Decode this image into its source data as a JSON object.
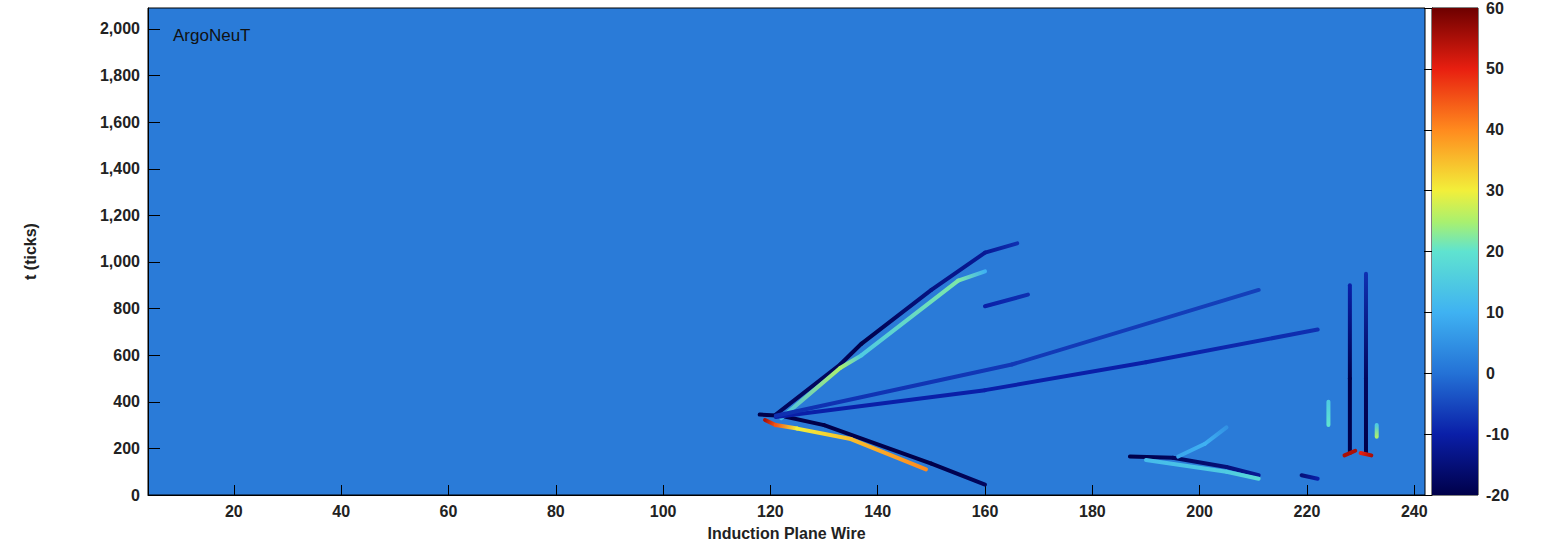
{
  "chart_data": {
    "type": "heatmap",
    "annotation": "ArgoNeuT",
    "x_label": "Induction Plane Wire",
    "y_label": "t (ticks)",
    "xlim": [
      4,
      242
    ],
    "xticks": [
      20,
      40,
      60,
      80,
      100,
      120,
      140,
      160,
      180,
      200,
      220,
      240
    ],
    "ylim": [
      0,
      2090
    ],
    "yticks": [
      0,
      200,
      400,
      600,
      800,
      1000,
      1200,
      1400,
      1600,
      1800,
      2000
    ],
    "colorbar": {
      "range": [
        -20,
        60
      ],
      "ticks": [
        -20,
        -10,
        0,
        10,
        20,
        30,
        40,
        50,
        60
      ]
    },
    "tracks": [
      {
        "points": [
          [
            118,
            345,
            -20
          ],
          [
            122,
            340,
            -20
          ],
          [
            130,
            300,
            -20
          ],
          [
            150,
            135,
            -20
          ],
          [
            160,
            45,
            -18
          ]
        ]
      },
      {
        "points": [
          [
            119,
            322,
            55
          ],
          [
            121,
            300,
            45
          ],
          [
            125,
            285,
            30
          ],
          [
            135,
            240,
            35
          ],
          [
            149,
            110,
            40
          ]
        ]
      },
      {
        "points": [
          [
            121,
            345,
            -18
          ],
          [
            133,
            560,
            -18
          ],
          [
            137,
            650,
            -20
          ],
          [
            150,
            880,
            -14
          ],
          [
            160,
            1040,
            -12
          ],
          [
            166,
            1080,
            -8
          ]
        ]
      },
      {
        "points": [
          [
            122,
            330,
            12
          ],
          [
            133,
            545,
            25
          ],
          [
            137,
            600,
            15
          ],
          [
            155,
            920,
            22
          ],
          [
            160,
            960,
            10
          ]
        ]
      },
      {
        "points": [
          [
            121,
            335,
            -10
          ],
          [
            160,
            450,
            -10
          ],
          [
            190,
            570,
            -10
          ],
          [
            222,
            710,
            -8
          ]
        ]
      },
      {
        "points": [
          [
            121,
            340,
            -8
          ],
          [
            165,
            560,
            -7
          ],
          [
            211,
            880,
            -6
          ]
        ]
      },
      {
        "points": [
          [
            160,
            810,
            -10
          ],
          [
            168,
            860,
            -8
          ]
        ]
      },
      {
        "points": [
          [
            187,
            165,
            -20
          ],
          [
            195,
            160,
            -18
          ],
          [
            205,
            120,
            -15
          ],
          [
            211,
            85,
            -12
          ]
        ]
      },
      {
        "points": [
          [
            190,
            150,
            12
          ],
          [
            205,
            100,
            15
          ],
          [
            211,
            70,
            18
          ]
        ]
      },
      {
        "points": [
          [
            196,
            165,
            8
          ],
          [
            201,
            220,
            10
          ],
          [
            205,
            290,
            5
          ]
        ]
      },
      {
        "points": [
          [
            228,
            180,
            -20
          ],
          [
            228,
            500,
            -20
          ],
          [
            228,
            900,
            -10
          ]
        ]
      },
      {
        "points": [
          [
            231,
            180,
            -20
          ],
          [
            231,
            500,
            -18
          ],
          [
            231,
            950,
            -8
          ]
        ]
      },
      {
        "points": [
          [
            227,
            170,
            55
          ],
          [
            229,
            190,
            55
          ]
        ]
      },
      {
        "points": [
          [
            230,
            180,
            50
          ],
          [
            232,
            170,
            55
          ]
        ]
      },
      {
        "points": [
          [
            224,
            300,
            20
          ],
          [
            224,
            400,
            15
          ]
        ]
      },
      {
        "points": [
          [
            233,
            300,
            15
          ],
          [
            233,
            250,
            25
          ]
        ]
      },
      {
        "points": [
          [
            219,
            85,
            -15
          ],
          [
            222,
            70,
            -10
          ]
        ]
      }
    ]
  }
}
